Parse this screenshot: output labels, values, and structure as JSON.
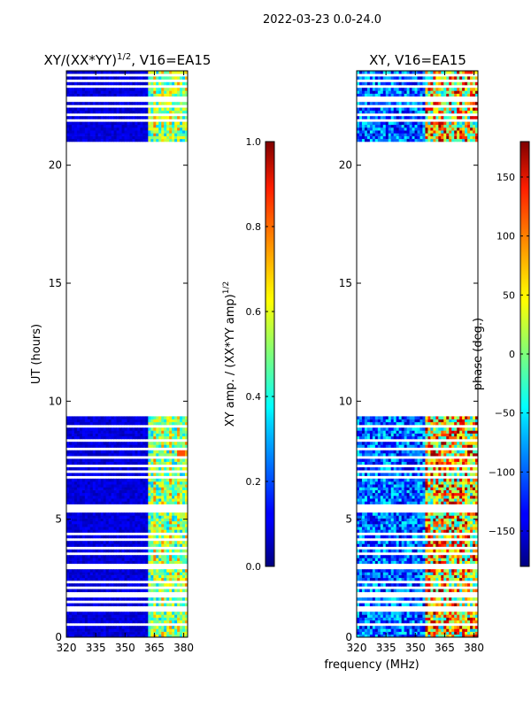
{
  "suptitle": "2022-03-23 0.0-24.0",
  "chart_data": [
    {
      "type": "heatmap",
      "title": "XY/(XX*YY)^1/2, V16=EA15",
      "title_main": "XY/(XX*YY)",
      "title_exp": "1/2",
      "title_rest": ", V16=EA15",
      "xlabel": "",
      "ylabel": "UT (hours)",
      "xlim": [
        320,
        382
      ],
      "ylim": [
        0,
        24
      ],
      "xticks": [
        320,
        335,
        350,
        365,
        380
      ],
      "yticks": [
        0,
        5,
        10,
        15,
        20
      ],
      "quantity": "amplitude",
      "data_rows_hours": [
        [
          0.0,
          9.25
        ],
        [
          21.0,
          24.0
        ]
      ],
      "colorbar": {
        "label": "XY amp. / (XX*YY amp)^1/2",
        "label_main": "XY amp. / (XX*YY amp)",
        "label_exp": "1/2",
        "range": [
          0.0,
          1.0
        ],
        "ticks": [
          "0.0",
          "0.2",
          "0.4",
          "0.6",
          "0.8",
          "1.0"
        ],
        "tick_values": [
          0.0,
          0.2,
          0.4,
          0.6,
          0.8,
          1.0
        ],
        "colormap": "jet"
      }
    },
    {
      "type": "heatmap",
      "title": "XY, V16=EA15",
      "xlabel": "frequency (MHz)",
      "ylabel": "",
      "xlim": [
        320,
        382
      ],
      "ylim": [
        0,
        24
      ],
      "xticks": [
        320,
        335,
        350,
        365,
        380
      ],
      "yticks": [
        0,
        5,
        10,
        15,
        20
      ],
      "quantity": "phase",
      "data_rows_hours": [
        [
          0.0,
          9.25
        ],
        [
          21.0,
          24.0
        ]
      ],
      "colorbar": {
        "label": "phase (deg.)",
        "range": [
          -180,
          180
        ],
        "ticks": [
          "−150",
          "−100",
          "−50",
          "0",
          "50",
          "100",
          "150"
        ],
        "tick_values": [
          -150,
          -100,
          -50,
          0,
          50,
          100,
          150
        ],
        "colormap": "jet"
      }
    }
  ]
}
